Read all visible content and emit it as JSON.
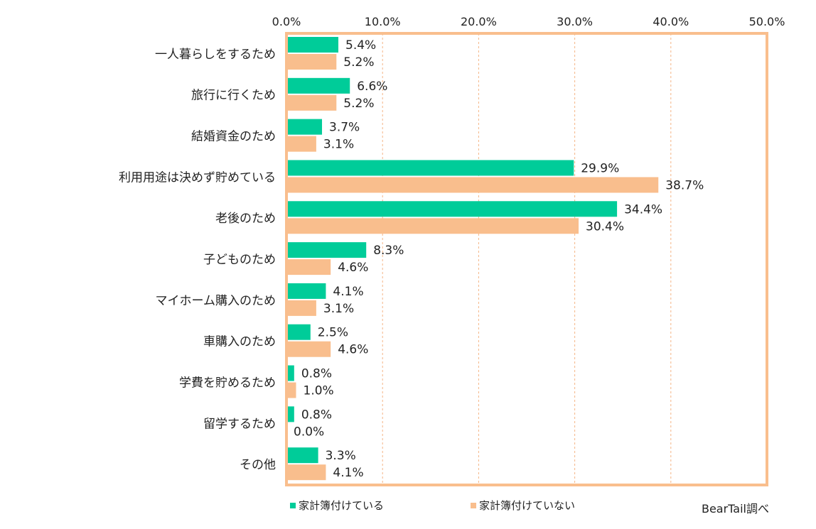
{
  "chart_data": {
    "type": "bar",
    "orientation": "horizontal",
    "categories": [
      "一人暮らしをするため",
      "旅行に行くため",
      "結婚資金のため",
      "利用用途は決めず貯めている",
      "老後のため",
      "子どものため",
      "マイホーム購入のため",
      "車購入のため",
      "学費を貯めるため",
      "留学するため",
      "その他"
    ],
    "series": [
      {
        "name": "家計簿付けている",
        "color": "#00CC99",
        "values": [
          5.4,
          6.6,
          3.7,
          29.9,
          34.4,
          8.3,
          4.1,
          2.5,
          0.8,
          0.8,
          3.3
        ],
        "labels": [
          "5.4%",
          "6.6%",
          "3.7%",
          "29.9%",
          "34.4%",
          "8.3%",
          "4.1%",
          "2.5%",
          "0.8%",
          "0.8%",
          "3.3%"
        ]
      },
      {
        "name": "家計簿付けていない",
        "color": "#F9BE8D",
        "values": [
          5.2,
          5.2,
          3.1,
          38.7,
          30.4,
          4.6,
          3.1,
          4.6,
          1.0,
          0.0,
          4.1
        ],
        "labels": [
          "5.2%",
          "5.2%",
          "3.1%",
          "38.7%",
          "30.4%",
          "4.6%",
          "3.1%",
          "4.6%",
          "1.0%",
          "0.0%",
          "4.1%"
        ]
      }
    ],
    "xlim": [
      0,
      50
    ],
    "xticks": [
      0,
      10,
      20,
      30,
      40,
      50
    ],
    "xtick_labels": [
      "0.0%",
      "10.0%",
      "20.0%",
      "30.0%",
      "40.0%",
      "50.0%"
    ],
    "axis_position": "top",
    "grid": true,
    "legend_position": "bottom-left",
    "frame_color": "#F9BE8D",
    "grid_color": "#F5B585"
  },
  "credit": "BearTail調べ"
}
